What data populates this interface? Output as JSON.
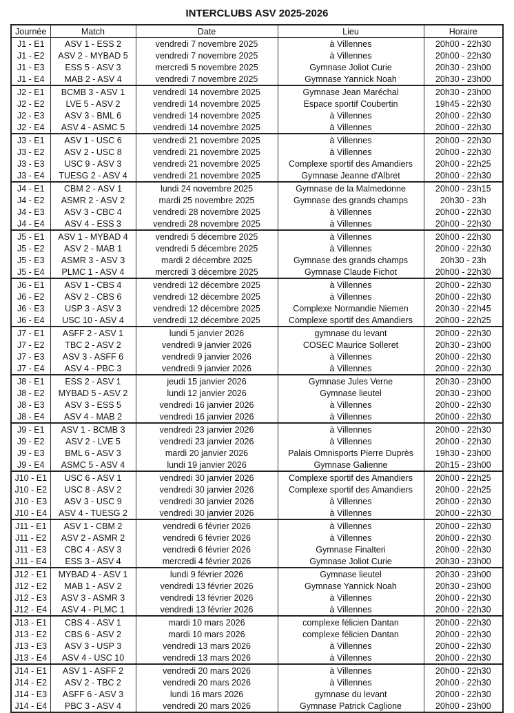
{
  "title": "INTERCLUBS ASV 2025-2026",
  "headers": [
    "Journée",
    "Match",
    "Date",
    "Lieu",
    "Horaire"
  ],
  "rows": [
    [
      "J1 - E1",
      "ASV 1 - ESS 2",
      "vendredi 7 novembre 2025",
      "à Villennes",
      "20h00 - 22h30"
    ],
    [
      "J1 - E2",
      "ASV 2 - MYBAD 5",
      "vendredi 7 novembre 2025",
      "à Villennes",
      "20h00 - 22h30"
    ],
    [
      "J1 - E3",
      "ESS 5 - ASV 3",
      "mercredi 5 novembre 2025",
      "Gymnase Joliot Curie",
      "20h30 - 23h00"
    ],
    [
      "J1 - E4",
      "MAB 2 - ASV 4",
      "vendredi 7 novembre 2025",
      "Gymnase Yannick Noah",
      "20h30 - 23h00"
    ],
    [
      "J2 - E1",
      "BCMB 3 - ASV 1",
      "vendredi 14 novembre 2025",
      "Gymnase Jean Maréchal",
      "20h30 - 23h00"
    ],
    [
      "J2 - E2",
      "LVE 5 - ASV 2",
      "vendredi 14 novembre 2025",
      "Espace sportif Coubertin",
      "19h45 - 22h30"
    ],
    [
      "J2 - E3",
      "ASV 3 - BML 6",
      "vendredi 14 novembre 2025",
      "à Villennes",
      "20h00 - 22h30"
    ],
    [
      "J2 - E4",
      "ASV 4 - ASMC 5",
      "vendredi 14 novembre 2025",
      "à Villennes",
      "20h00 - 22h30"
    ],
    [
      "J3 - E1",
      "ASV 1 - USC 6",
      "vendredi 21 novembre 2025",
      "à Villennes",
      "20h00 - 22h30"
    ],
    [
      "J3 - E2",
      "ASV 2 - USC 8",
      "vendredi 21 novembre 2025",
      "à Villennes",
      "20h00 - 22h30"
    ],
    [
      "J3 - E3",
      "USC 9 - ASV 3",
      "vendredi 21 novembre 2025",
      "Complexe sportif des Amandiers",
      "20h00 - 22h25"
    ],
    [
      "J3 - E4",
      "TUESG 2 - ASV 4",
      "vendredi 21 novembre 2025",
      "Gymnase Jeanne d'Albret",
      "20h00 - 22h30"
    ],
    [
      "J4 - E1",
      "CBM 2 - ASV 1",
      "lundi 24 novembre 2025",
      "Gymnase de la Malmedonne",
      "20h00 - 23h15"
    ],
    [
      "J4 - E2",
      "ASMR 2 - ASV 2",
      "mardi 25 novembre 2025",
      "Gymnase des grands champs",
      "20h30 - 23h"
    ],
    [
      "J4 - E3",
      "ASV 3 - CBC 4",
      "vendredi 28 novembre 2025",
      "à Villennes",
      "20h00 - 22h30"
    ],
    [
      "J4 - E4",
      "ASV 4 - ESS 3",
      "vendredi 28 novembre 2025",
      "à Villennes",
      "20h00 - 22h30"
    ],
    [
      "J5 - E1",
      "ASV 1 - MYBAD 4",
      "vendredi 5 décembre 2025",
      "à Villennes",
      "20h00 - 22h30"
    ],
    [
      "J5 - E2",
      "ASV 2 - MAB 1",
      "vendredi 5 décembre 2025",
      "à Villennes",
      "20h00 - 22h30"
    ],
    [
      "J5 - E3",
      "ASMR 3 - ASV 3",
      "mardi 2 décembre 2025",
      "Gymnase des grands champs",
      "20h30 - 23h"
    ],
    [
      "J5 - E4",
      "PLMC 1 - ASV 4",
      "mercredi 3 décembre 2025",
      "Gymnase Claude Fichot",
      "20h00 - 22h30"
    ],
    [
      "J6 - E1",
      "ASV 1 - CBS 4",
      "vendredi 12 décembre 2025",
      "à Villennes",
      "20h00 - 22h30"
    ],
    [
      "J6 - E2",
      "ASV 2 - CBS 6",
      "vendredi 12 décembre 2025",
      "à Villennes",
      "20h00 - 22h30"
    ],
    [
      "J6 - E3",
      "USP 3 - ASV 3",
      "vendredi 12 décembre 2025",
      "Complexe Normandie Niemen",
      "20h30 - 22h45"
    ],
    [
      "J6 - E4",
      "USC 10 - ASV 4",
      "vendredi 12 décembre 2025",
      "Complexe sportif des Amandiers",
      "20h00 - 22h25"
    ],
    [
      "J7 - E1",
      "ASFF 2 - ASV 1",
      "lundi 5 janvier 2026",
      "gymnase du levant",
      "20h00 - 22h30"
    ],
    [
      "J7 - E2",
      "TBC 2 - ASV 2",
      "vendredi 9 janvier 2026",
      "COSEC Maurice Solleret",
      "20h30 - 23h00"
    ],
    [
      "J7 - E3",
      "ASV 3 - ASFF 6",
      "vendredi 9 janvier 2026",
      "à Villennes",
      "20h00 - 22h30"
    ],
    [
      "J7 - E4",
      "ASV 4 - PBC 3",
      "vendredi 9 janvier 2026",
      "à Villennes",
      "20h00 - 22h30"
    ],
    [
      "J8 - E1",
      "ESS 2 - ASV 1",
      "jeudi 15 janvier 2026",
      "Gymnase Jules Verne",
      "20h30 - 23h00"
    ],
    [
      "J8 - E2",
      "MYBAD 5 - ASV 2",
      "lundi 12 janvier 2026",
      "Gymnase lieutel",
      "20h30 - 23h00"
    ],
    [
      "J8 - E3",
      "ASV 3 - ESS 5",
      "vendredi 16 janvier 2026",
      "à Villennes",
      "20h00 - 22h30"
    ],
    [
      "J8 - E4",
      "ASV 4 - MAB 2",
      "vendredi 16 janvier 2026",
      "à Villennes",
      "20h00 - 22h30"
    ],
    [
      "J9 - E1",
      "ASV 1 - BCMB 3",
      "vendredi 23 janvier 2026",
      "à Villennes",
      "20h00 - 22h30"
    ],
    [
      "J9 - E2",
      "ASV 2 - LVE 5",
      "vendredi 23 janvier 2026",
      "à Villennes",
      "20h00 - 22h30"
    ],
    [
      "J9 - E3",
      "BML 6 - ASV 3",
      "mardi 20 janvier 2026",
      "Palais Omnisports Pierre Duprès",
      "19h30 - 23h00"
    ],
    [
      "J9 - E4",
      "ASMC 5 - ASV 4",
      "lundi 19 janvier 2026",
      "Gymnase Galienne",
      "20h15 - 23h00"
    ],
    [
      "J10 - E1",
      "USC 6 - ASV 1",
      "vendredi 30 janvier 2026",
      "Complexe sportif des Amandiers",
      "20h00 - 22h25"
    ],
    [
      "J10 - E2",
      "USC 8 - ASV 2",
      "vendredi 30 janvier 2026",
      "Complexe sportif des Amandiers",
      "20h00 - 22h25"
    ],
    [
      "J10 - E3",
      "ASV 3 - USC 9",
      "vendredi 30 janvier 2026",
      "à Villennes",
      "20h00 - 22h30"
    ],
    [
      "J10 - E4",
      "ASV 4 - TUESG 2",
      "vendredi 30 janvier 2026",
      "à Villennes",
      "20h00 - 22h30"
    ],
    [
      "J11 - E1",
      "ASV 1 - CBM 2",
      "vendredi 6 février 2026",
      "à Villennes",
      "20h00 - 22h30"
    ],
    [
      "J11 - E2",
      "ASV 2 - ASMR 2",
      "vendredi 6 février 2026",
      "à Villennes",
      "20h00 - 22h30"
    ],
    [
      "J11 - E3",
      "CBC 4 - ASV 3",
      "vendredi 6 février 2026",
      "Gymnase Finalteri",
      "20h00 - 22h30"
    ],
    [
      "J11 - E4",
      "ESS 3 - ASV 4",
      "mercredi 4 février 2026",
      "Gymnase Joliot Curie",
      "20h30 - 23h00"
    ],
    [
      "J12 - E1",
      "MYBAD 4 - ASV 1",
      "lundi 9 février 2026",
      "Gymnase lieutel",
      "20h30 - 23h00"
    ],
    [
      "J12 - E2",
      "MAB 1 - ASV 2",
      "vendredi 13 février 2026",
      "Gymnase Yannick Noah",
      "20h30 - 23h00"
    ],
    [
      "J12 - E3",
      "ASV 3 - ASMR 3",
      "vendredi 13 février 2026",
      "à Villennes",
      "20h00 - 22h30"
    ],
    [
      "J12 - E4",
      "ASV 4 - PLMC 1",
      "vendredi 13 février 2026",
      "à Villennes",
      "20h00 - 22h30"
    ],
    [
      "J13 - E1",
      "CBS 4 - ASV 1",
      "mardi 10 mars 2026",
      "complexe félicien Dantan",
      "20h00 - 22h30"
    ],
    [
      "J13 - E2",
      "CBS 6 - ASV 2",
      "mardi 10 mars 2026",
      "complexe félicien Dantan",
      "20h00 - 22h30"
    ],
    [
      "J13 - E3",
      "ASV 3 - USP 3",
      "vendredi 13 mars 2026",
      "à Villennes",
      "20h00 - 22h30"
    ],
    [
      "J13 - E4",
      "ASV 4 - USC 10",
      "vendredi 13 mars 2026",
      "à Villennes",
      "20h00 - 22h30"
    ],
    [
      "J14 - E1",
      "ASV 1 - ASFF 2",
      "vendredi 20 mars 2026",
      "à Villennes",
      "20h00 - 22h30"
    ],
    [
      "J14 - E2",
      "ASV 2 - TBC 2",
      "vendredi 20 mars 2026",
      "à Villennes",
      "20h00 - 22h30"
    ],
    [
      "J14 - E3",
      "ASFF 6 - ASV 3",
      "lundi 16 mars 2026",
      "gymnase du levant",
      "20h00 - 22h30"
    ],
    [
      "J14 - E4",
      "PBC 3 - ASV 4",
      "vendredi 20 mars 2026",
      "Gymnase Patrick Caglione",
      "20h00 - 23h00"
    ]
  ]
}
